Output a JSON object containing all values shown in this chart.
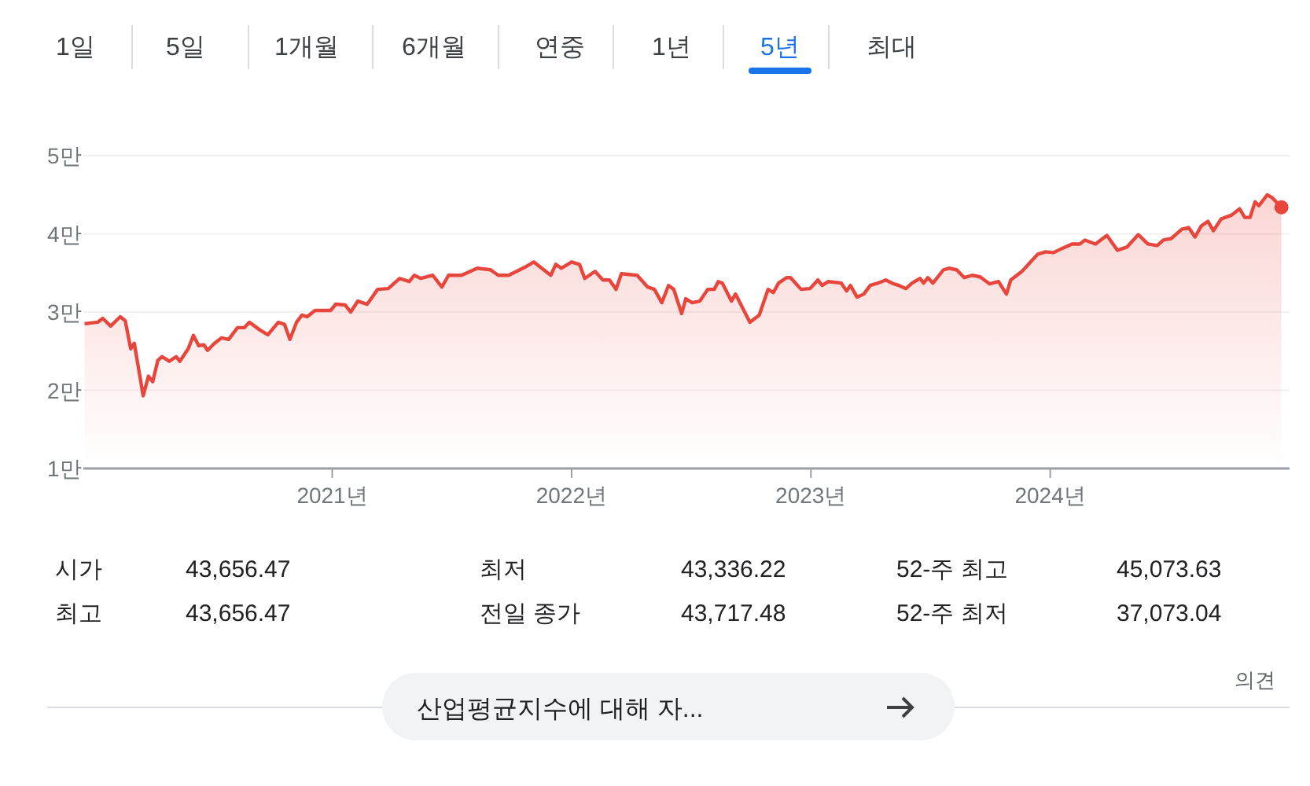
{
  "chart_data": {
    "type": "area",
    "color": "#e8453c",
    "grid": "y",
    "xlim": [
      2019.96,
      2025.0
    ],
    "ylim": [
      1,
      5
    ],
    "xticks": [
      {
        "value": 2021,
        "label": "2021년"
      },
      {
        "value": 2022,
        "label": "2022년"
      },
      {
        "value": 2023,
        "label": "2023년"
      },
      {
        "value": 2024,
        "label": "2024년"
      }
    ],
    "yticks": [
      {
        "value": 1,
        "label": "1만"
      },
      {
        "value": 2,
        "label": "2만"
      },
      {
        "value": 3,
        "label": "3만"
      },
      {
        "value": 4,
        "label": "4만"
      },
      {
        "value": 5,
        "label": "5만"
      }
    ],
    "x": [
      2019.965,
      2020.02,
      2020.041,
      2020.074,
      2020.114,
      2020.135,
      2020.158,
      2020.173,
      2020.21,
      2020.232,
      2020.25,
      2020.271,
      2020.289,
      2020.319,
      2020.348,
      2020.363,
      2020.398,
      2020.42,
      2020.442,
      2020.464,
      2020.479,
      2020.508,
      2020.538,
      2020.567,
      2020.604,
      2020.632,
      2020.654,
      2020.698,
      2020.731,
      2020.775,
      2020.801,
      2020.823,
      2020.851,
      2020.873,
      2020.895,
      2020.928,
      2020.993,
      2021.015,
      2021.054,
      2021.077,
      2021.107,
      2021.146,
      2021.19,
      2021.234,
      2021.282,
      2021.322,
      2021.343,
      2021.37,
      2021.42,
      2021.458,
      2021.486,
      2021.54,
      2021.606,
      2021.661,
      2021.694,
      2021.737,
      2021.803,
      2021.842,
      2021.913,
      2021.934,
      2021.957,
      2022.0,
      2022.033,
      2022.055,
      2022.098,
      2022.131,
      2022.158,
      2022.186,
      2022.208,
      2022.274,
      2022.318,
      2022.346,
      2022.377,
      2022.405,
      2022.427,
      2022.46,
      2022.477,
      2022.504,
      2022.536,
      2022.569,
      2022.596,
      2022.613,
      2022.63,
      2022.668,
      2022.685,
      2022.745,
      2022.784,
      2022.821,
      2022.843,
      2022.865,
      2022.898,
      2022.915,
      2022.959,
      2022.996,
      2023.029,
      2023.047,
      2023.073,
      2023.127,
      2023.149,
      2023.165,
      2023.193,
      2023.221,
      2023.248,
      2023.28,
      2023.313,
      2023.346,
      2023.368,
      2023.397,
      2023.423,
      2023.456,
      2023.471,
      2023.489,
      2023.51,
      2023.554,
      2023.576,
      2023.609,
      2023.641,
      2023.674,
      2023.707,
      2023.747,
      2023.784,
      2023.817,
      2023.835,
      2023.882,
      2023.915,
      2023.948,
      2023.981,
      2024.014,
      2024.047,
      2024.091,
      2024.123,
      2024.145,
      2024.189,
      2024.237,
      2024.281,
      2024.32,
      2024.368,
      2024.408,
      2024.447,
      2024.473,
      2024.506,
      2024.55,
      2024.578,
      2024.605,
      2024.631,
      2024.659,
      2024.682,
      2024.714,
      2024.758,
      2024.791,
      2024.813,
      2024.835,
      2024.856,
      2024.872,
      2024.907,
      2024.928,
      2024.966
    ],
    "values": [
      2.85,
      2.87,
      2.92,
      2.82,
      2.94,
      2.89,
      2.53,
      2.6,
      1.93,
      2.18,
      2.11,
      2.38,
      2.43,
      2.37,
      2.43,
      2.37,
      2.53,
      2.7,
      2.57,
      2.58,
      2.51,
      2.6,
      2.67,
      2.65,
      2.8,
      2.8,
      2.87,
      2.77,
      2.71,
      2.87,
      2.84,
      2.65,
      2.87,
      2.96,
      2.94,
      3.02,
      3.02,
      3.1,
      3.09,
      3.0,
      3.14,
      3.1,
      3.29,
      3.3,
      3.43,
      3.39,
      3.47,
      3.43,
      3.47,
      3.32,
      3.47,
      3.47,
      3.56,
      3.54,
      3.47,
      3.47,
      3.57,
      3.64,
      3.47,
      3.61,
      3.56,
      3.64,
      3.61,
      3.43,
      3.52,
      3.41,
      3.41,
      3.29,
      3.49,
      3.47,
      3.32,
      3.29,
      3.12,
      3.34,
      3.29,
      2.98,
      3.17,
      3.12,
      3.14,
      3.29,
      3.29,
      3.39,
      3.37,
      3.14,
      3.23,
      2.87,
      2.96,
      3.29,
      3.25,
      3.37,
      3.44,
      3.44,
      3.29,
      3.3,
      3.41,
      3.34,
      3.39,
      3.37,
      3.27,
      3.34,
      3.19,
      3.23,
      3.34,
      3.37,
      3.41,
      3.36,
      3.34,
      3.3,
      3.37,
      3.43,
      3.37,
      3.44,
      3.37,
      3.54,
      3.56,
      3.54,
      3.44,
      3.47,
      3.45,
      3.36,
      3.39,
      3.23,
      3.41,
      3.52,
      3.63,
      3.74,
      3.77,
      3.76,
      3.81,
      3.87,
      3.87,
      3.92,
      3.87,
      3.98,
      3.79,
      3.83,
      3.99,
      3.87,
      3.85,
      3.92,
      3.94,
      4.06,
      4.08,
      3.96,
      4.1,
      4.16,
      4.04,
      4.19,
      4.24,
      4.32,
      4.21,
      4.21,
      4.41,
      4.36,
      4.5,
      4.46,
      4.34
    ],
    "annotations": [
      "1일",
      "5일",
      "1개월",
      "6개월",
      "연중",
      "1년",
      "5년",
      "최대",
      "시가",
      "43,656.47",
      "최저",
      "43,336.22",
      "52-주 최고",
      "45,073.63",
      "최고",
      "43,656.47",
      "전일 종가",
      "43,717.48",
      "52-주 최저",
      "37,073.04",
      "의견",
      "산업평균지수에 대해 자..."
    ]
  }
}
